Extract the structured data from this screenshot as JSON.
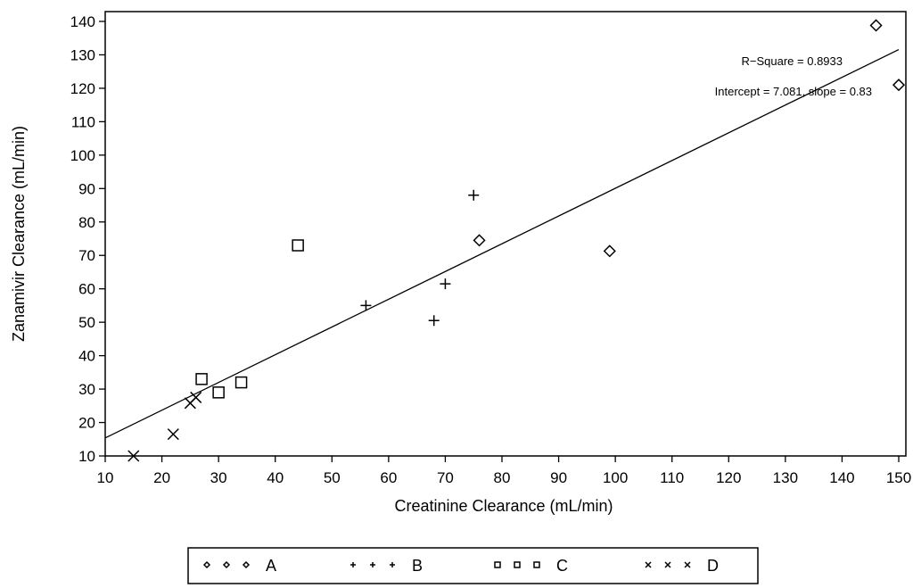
{
  "chart_data": {
    "type": "scatter",
    "title": "",
    "xlabel": "Creatinine Clearance (mL/min)",
    "ylabel": "Zanamivir Clearance (mL/min)",
    "xlim": [
      10,
      150
    ],
    "ylim": [
      10,
      140
    ],
    "xticks": [
      "10",
      "20",
      "30",
      "40",
      "50",
      "60",
      "70",
      "80",
      "90",
      "100",
      "110",
      "120",
      "130",
      "140",
      "150"
    ],
    "yticks": [
      "10",
      "20",
      "30",
      "40",
      "50",
      "60",
      "70",
      "80",
      "90",
      "100",
      "110",
      "120",
      "130",
      "140"
    ],
    "grid": false,
    "legend_position": "bottom",
    "series": [
      {
        "name": "A",
        "marker": "diamond",
        "x": [
          76,
          99,
          146,
          150
        ],
        "y": [
          74.5,
          71.3,
          138.8,
          121
        ]
      },
      {
        "name": "B",
        "marker": "plus",
        "x": [
          56,
          68,
          70,
          75
        ],
        "y": [
          55,
          50.5,
          61.5,
          88
        ]
      },
      {
        "name": "C",
        "marker": "square",
        "x": [
          27,
          30,
          34,
          44
        ],
        "y": [
          33,
          29,
          32,
          73
        ]
      },
      {
        "name": "D",
        "marker": "x",
        "x": [
          15,
          22,
          25,
          26
        ],
        "y": [
          10,
          16.5,
          25.8,
          27.5
        ]
      }
    ],
    "regression": {
      "intercept": 7.081,
      "slope": 0.83
    },
    "annotations": {
      "r_square": "R−Square = 0.8933",
      "fit": "Intercept = 7.081, slope = 0.83"
    }
  }
}
